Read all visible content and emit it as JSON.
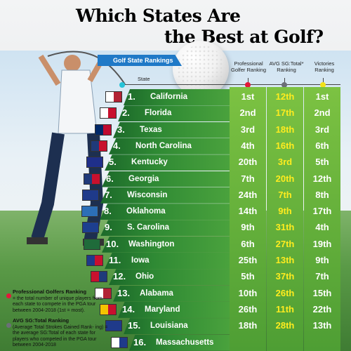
{
  "title": {
    "line1": "Which States Are",
    "line2": "the Best at Golf?"
  },
  "table": {
    "banner": "Golf State Rankings",
    "state_header": "State",
    "columns": [
      {
        "label": "Professional Golfer Ranking",
        "dot_color": "#e3183a"
      },
      {
        "label": "AVG SG:Total* Ranking",
        "dot_color": "#6b6f78"
      },
      {
        "label": "Victories Ranking",
        "dot_color": "#f2e21a"
      }
    ],
    "rows": [
      {
        "rank": "1.",
        "state": "California",
        "pro": "1st",
        "sg": "12th",
        "vic": "1st",
        "flag": "california-flag",
        "flag_colors": [
          "#ffffff",
          "#b22234"
        ]
      },
      {
        "rank": "2.",
        "state": "Florida",
        "pro": "2nd",
        "sg": "17th",
        "vic": "2nd",
        "flag": "florida-flag",
        "flag_colors": [
          "#ffffff",
          "#c8102e"
        ]
      },
      {
        "rank": "3.",
        "state": "Texas",
        "pro": "3rd",
        "sg": "18th",
        "vic": "3rd",
        "flag": "texas-flag",
        "flag_colors": [
          "#002868",
          "#bf0a30"
        ]
      },
      {
        "rank": "4.",
        "state": "North Carolina",
        "pro": "4th",
        "sg": "16th",
        "vic": "6th",
        "flag": "north-carolina-flag",
        "flag_colors": [
          "#1f3a7a",
          "#c8102e"
        ]
      },
      {
        "rank": "5.",
        "state": "Kentucky",
        "pro": "20th",
        "sg": "3rd",
        "vic": "5th",
        "flag": "kentucky-flag",
        "flag_colors": [
          "#1f2f8a",
          "#1f2f8a"
        ]
      },
      {
        "rank": "6.",
        "state": "Georgia",
        "pro": "7th",
        "sg": "20th",
        "vic": "12th",
        "flag": "georgia-flag",
        "flag_colors": [
          "#1f3a7a",
          "#c8102e"
        ]
      },
      {
        "rank": "7.",
        "state": "Wisconsin",
        "pro": "24th",
        "sg": "7th",
        "vic": "8th",
        "flag": "wisconsin-flag",
        "flag_colors": [
          "#1f3a8a",
          "#1f3a8a"
        ]
      },
      {
        "rank": "8.",
        "state": "Oklahoma",
        "pro": "14th",
        "sg": "9th",
        "vic": "17th",
        "flag": "oklahoma-flag",
        "flag_colors": [
          "#2c6fb7",
          "#2c6fb7"
        ]
      },
      {
        "rank": "9.",
        "state": "S. Carolina",
        "pro": "9th",
        "sg": "31th",
        "vic": "4th",
        "flag": "south-carolina-flag",
        "flag_colors": [
          "#1d3f8f",
          "#1d3f8f"
        ]
      },
      {
        "rank": "10.",
        "state": "Washington",
        "pro": "6th",
        "sg": "27th",
        "vic": "19th",
        "flag": "washington-flag",
        "flag_colors": [
          "#1f6b3a",
          "#1f6b3a"
        ]
      },
      {
        "rank": "11.",
        "state": "Iowa",
        "pro": "25th",
        "sg": "13th",
        "vic": "9th",
        "flag": "iowa-flag",
        "flag_colors": [
          "#1f3a8a",
          "#c8102e"
        ]
      },
      {
        "rank": "12.",
        "state": "Ohio",
        "pro": "5th",
        "sg": "37th",
        "vic": "7th",
        "flag": "ohio-flag",
        "flag_colors": [
          "#c8102e",
          "#1f3a7a"
        ]
      },
      {
        "rank": "13.",
        "state": "Alabama",
        "pro": "10th",
        "sg": "26th",
        "vic": "15th",
        "flag": "alabama-flag",
        "flag_colors": [
          "#ffffff",
          "#b22234"
        ]
      },
      {
        "rank": "14.",
        "state": "Maryland",
        "pro": "26th",
        "sg": "11th",
        "vic": "22th",
        "flag": "maryland-flag",
        "flag_colors": [
          "#f5c400",
          "#c8102e"
        ]
      },
      {
        "rank": "15.",
        "state": "Louisiana",
        "pro": "18th",
        "sg": "28th",
        "vic": "13th",
        "flag": "louisiana-flag",
        "flag_colors": [
          "#1f3a8a",
          "#1f3a8a"
        ]
      },
      {
        "rank": "16.",
        "state": "Massachusetts",
        "pro": "",
        "sg": "",
        "vic": "",
        "flag": "massachusetts-flag",
        "flag_colors": [
          "#ffffff",
          "#1f3a8a"
        ]
      }
    ]
  },
  "notes": {
    "pro_title": "Professional Golfers Ranking",
    "pro_text": "= the total number of unique players from each state to compete in the PGA tour between 2004-2018 (1st = most).",
    "sg_title": "AVG SG:Total Ranking",
    "sg_text": "(Average Total Strokes Gained Rank- ing) = the average SG:Total of each state for players who competed in the PGA tour between 2004-2018"
  },
  "colors": {
    "row_text": "#ffffff",
    "highlight": "#ffec1f",
    "banner": "#1f79c7"
  }
}
